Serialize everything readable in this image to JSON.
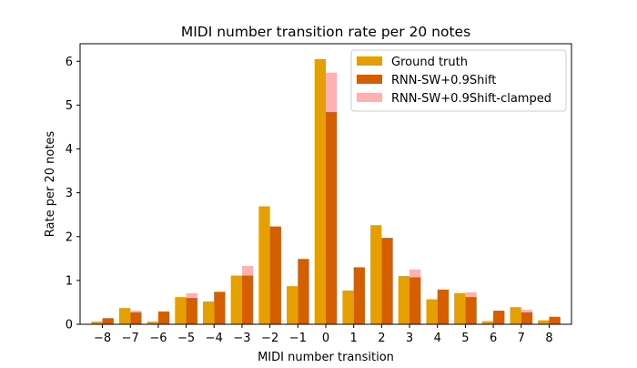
{
  "chart_data": {
    "type": "bar",
    "title": "MIDI number transition rate per 20 notes",
    "xlabel": "MIDI number transition",
    "ylabel": "Rate per 20 notes",
    "categories": [
      "−8",
      "−7",
      "−6",
      "−5",
      "−4",
      "−3",
      "−2",
      "−1",
      "0",
      "1",
      "2",
      "3",
      "4",
      "5",
      "6",
      "7",
      "8"
    ],
    "x": [
      -8,
      -7,
      -6,
      -5,
      -4,
      -3,
      -2,
      -1,
      0,
      1,
      2,
      3,
      4,
      5,
      6,
      7,
      8
    ],
    "yticks": [
      "0",
      "1",
      "2",
      "3",
      "4",
      "5",
      "6"
    ],
    "ylim": [
      0,
      6.4
    ],
    "xlim": [
      -8.8,
      8.8
    ],
    "grid": false,
    "legend_position": "top-right",
    "series": [
      {
        "name": "Ground truth",
        "color": "#e69f00",
        "offset": -0.2,
        "values": [
          0.06,
          0.37,
          0.06,
          0.62,
          0.52,
          1.11,
          2.69,
          0.87,
          6.05,
          0.77,
          2.26,
          1.1,
          0.57,
          0.71,
          0.07,
          0.39,
          0.09
        ]
      },
      {
        "name": "RNN-SW+0.9Shift-clamped",
        "color": "#ffb0b0",
        "offset": 0.2,
        "values": [
          0.13,
          0.31,
          0.28,
          0.71,
          0.71,
          1.33,
          2.23,
          0.9,
          5.74,
          0.81,
          1.97,
          1.25,
          0.62,
          0.73,
          0.28,
          0.33,
          0.16
        ]
      },
      {
        "name": "RNN-SW+0.9Shift",
        "color": "#d55e00",
        "offset": 0.2,
        "values": [
          0.14,
          0.27,
          0.29,
          0.6,
          0.74,
          1.11,
          2.23,
          1.49,
          4.84,
          1.3,
          1.97,
          1.07,
          0.79,
          0.62,
          0.31,
          0.27,
          0.17
        ]
      }
    ],
    "legend": [
      {
        "name": "Ground truth",
        "color": "#e69f00"
      },
      {
        "name": "RNN-SW+0.9Shift",
        "color": "#d55e00"
      },
      {
        "name": "RNN-SW+0.9Shift-clamped",
        "color": "#ffb0b0"
      }
    ]
  }
}
